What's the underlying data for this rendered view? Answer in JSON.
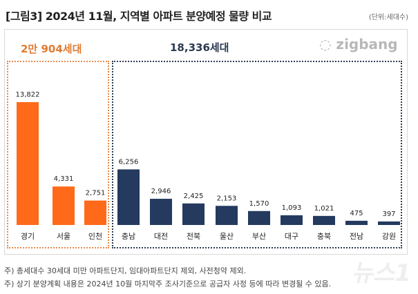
{
  "title": "[그림3] 2024년 11월, 지역별 아파트 분양예정 물량 비교",
  "unit": "(단위:세대수)",
  "logo": "zigbang",
  "watermark": "뉴스1",
  "groups": {
    "capital_total": "2만 904세대",
    "other_total": "18,336세대"
  },
  "notes": [
    "주) 총세대수 30세대 미만 아파트단지, 임대아파트단지 제외, 사전청약 제외.",
    "주) 상기 분양계획 내용은 2024년 10월 마지막주 조사기준으로 공급자 사정 등에 따라 변경될 수 있음."
  ],
  "colors": {
    "capital": "#ff6a1a",
    "other": "#243a5e"
  },
  "chart_data": {
    "type": "bar",
    "categories": [
      "경기",
      "서울",
      "인천",
      "충남",
      "대전",
      "전북",
      "울산",
      "부산",
      "대구",
      "충북",
      "전남",
      "강원"
    ],
    "values": [
      13822,
      4331,
      2751,
      6256,
      2946,
      2425,
      2153,
      1570,
      1093,
      1021,
      475,
      397
    ],
    "labels": [
      "13,822",
      "4,331",
      "2,751",
      "6,256",
      "2,946",
      "2,425",
      "2,153",
      "1,570",
      "1,093",
      "1,021",
      "475",
      "397"
    ],
    "group": [
      "capital",
      "capital",
      "capital",
      "other",
      "other",
      "other",
      "other",
      "other",
      "other",
      "other",
      "other",
      "other"
    ],
    "ylim": [
      0,
      14000
    ],
    "grid": false,
    "legend": "none"
  }
}
